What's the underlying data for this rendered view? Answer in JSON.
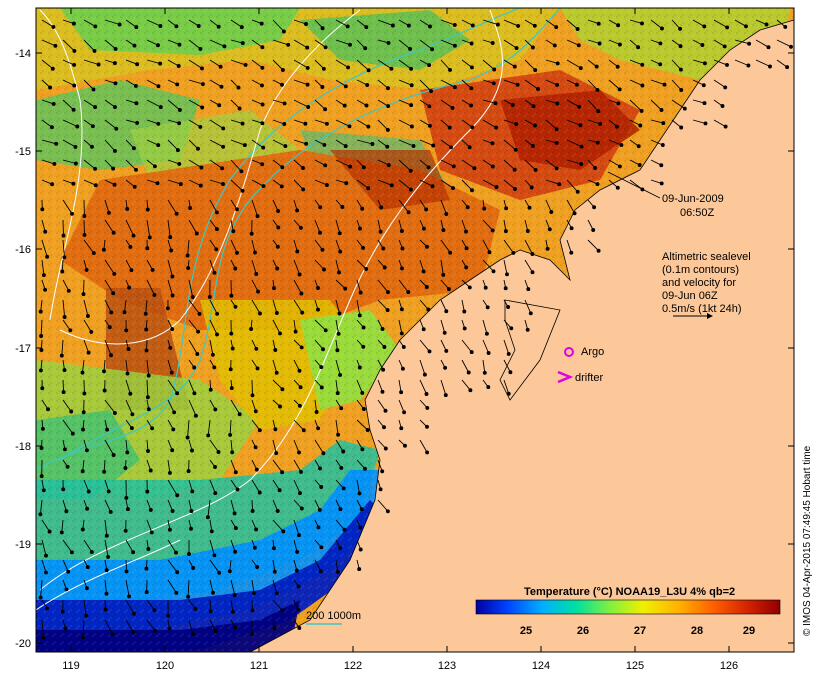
{
  "map": {
    "date_label": "09-Jun-2009",
    "time_label": "06:50Z",
    "altimetry_note": [
      "Altimetric sealevel",
      "(0.1m contours)",
      "and velocity for",
      "09-Jun 06Z",
      "0.5m/s (1kt 24h)"
    ],
    "legend": {
      "argo_label": "Argo",
      "drifter_label": "drifter",
      "argo_color": "#e000e0",
      "drifter_color": "#e000e0"
    },
    "bathymetry_label": "200  1000m",
    "bathymetry_color": "#3ec8c0",
    "credit": "© IMOS 04-Apr-2015 07:49:45 Hobart time",
    "x_ticks": [
      "119",
      "120",
      "121",
      "122",
      "123",
      "124",
      "125",
      "126"
    ],
    "y_ticks": [
      "-14",
      "-15",
      "-16",
      "-17",
      "-18",
      "-19",
      "-20"
    ],
    "land_color": "#fcc89a",
    "colorbar": {
      "title": "Temperature (°C) NOAA19_L3U 4% qb=2",
      "ticks": [
        "25",
        "26",
        "27",
        "28",
        "29"
      ],
      "colors": [
        "#0000a0",
        "#0040ff",
        "#00b0ff",
        "#00e0a0",
        "#80f040",
        "#f0f000",
        "#ffb000",
        "#ff6000",
        "#d02000",
        "#900000"
      ]
    }
  }
}
